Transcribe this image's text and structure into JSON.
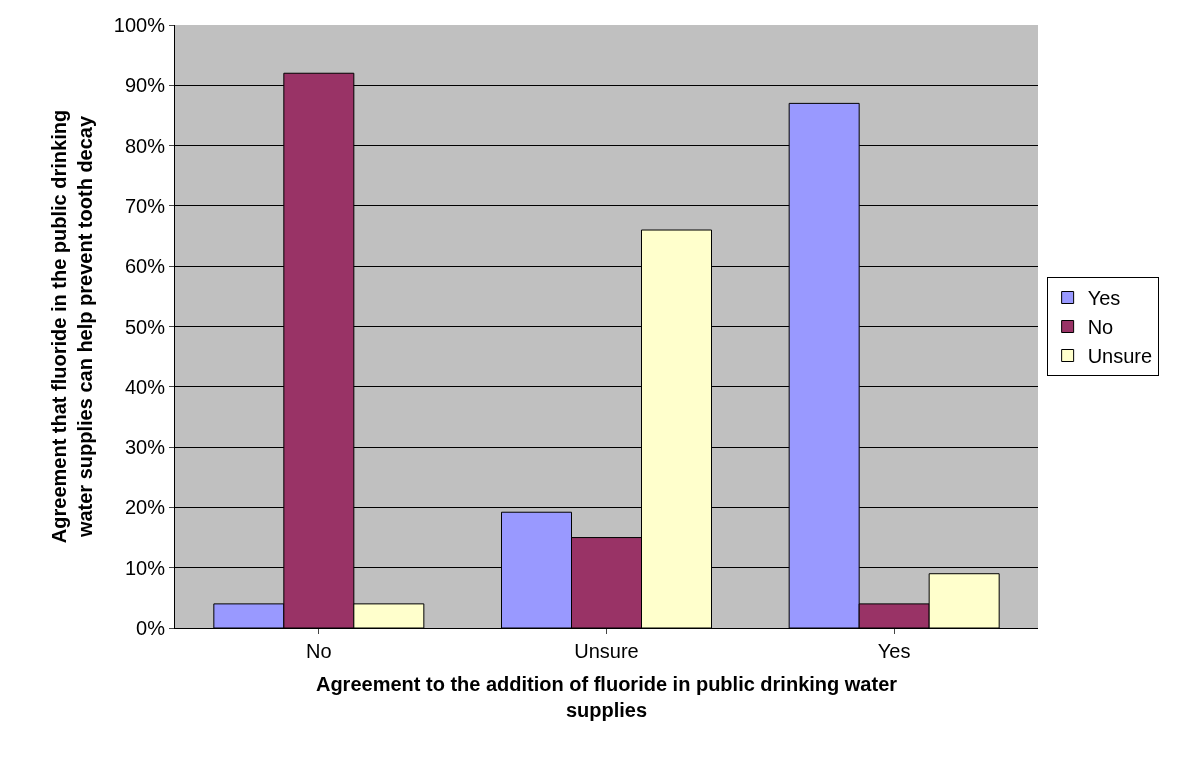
{
  "chart_data": {
    "type": "bar",
    "xlabel": "Agreement to the addition of fluoride in public drinking water supplies",
    "ylabel": "Agreement that fluoride in the public drinking water supplies can help prevent tooth decay",
    "categories": [
      "No",
      "Unsure",
      "Yes"
    ],
    "series": [
      {
        "name": "Yes",
        "color": "#9999ff",
        "values": [
          4,
          19.2,
          87
        ]
      },
      {
        "name": "No",
        "color": "#993366",
        "values": [
          92,
          15,
          4
        ]
      },
      {
        "name": "Unsure",
        "color": "#ffffcc",
        "values": [
          4,
          66,
          9
        ]
      }
    ],
    "ylim": [
      0,
      100
    ],
    "yticks": [
      {
        "value": 0,
        "label": "0%"
      },
      {
        "value": 10,
        "label": "10%"
      },
      {
        "value": 20,
        "label": "20%"
      },
      {
        "value": 30,
        "label": "30%"
      },
      {
        "value": 40,
        "label": "40%"
      },
      {
        "value": 50,
        "label": "50%"
      },
      {
        "value": 60,
        "label": "60%"
      },
      {
        "value": 70,
        "label": "70%"
      },
      {
        "value": 80,
        "label": "80%"
      },
      {
        "value": 90,
        "label": "90%"
      },
      {
        "value": 100,
        "label": "100%"
      }
    ],
    "grid": "y",
    "legend": "right"
  }
}
